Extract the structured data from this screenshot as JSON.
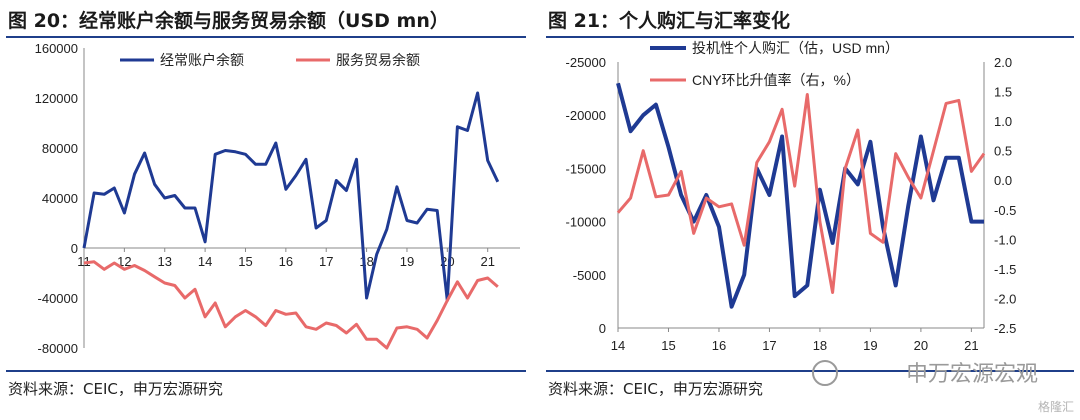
{
  "left": {
    "title": "图 20：经常账户余额与服务贸易余额（USD mn）",
    "source": "资料来源：CEIC，申万宏源研究",
    "chart_data": {
      "type": "line",
      "ylim": [
        -80000,
        160000
      ],
      "yticks": [
        -80000,
        -40000,
        0,
        40000,
        80000,
        120000,
        160000
      ],
      "ytick_labels": [
        "-80000",
        "-40000",
        "0",
        "40000",
        "80000",
        "120000",
        "160000"
      ],
      "xlim": [
        2011,
        2021.8
      ],
      "xticks": [
        2011,
        2012,
        2013,
        2014,
        2015,
        2016,
        2017,
        2018,
        2019,
        2020,
        2021
      ],
      "xtick_labels": [
        "11",
        "12",
        "13",
        "14",
        "15",
        "16",
        "17",
        "18",
        "19",
        "20",
        "21"
      ],
      "series": [
        {
          "name": "经常账户余额",
          "color": "#1f3a93",
          "width": 3,
          "x": [
            2011.0,
            2011.25,
            2011.5,
            2011.75,
            2012.0,
            2012.25,
            2012.5,
            2012.75,
            2013.0,
            2013.25,
            2013.5,
            2013.75,
            2014.0,
            2014.25,
            2014.5,
            2014.75,
            2015.0,
            2015.25,
            2015.5,
            2015.75,
            2016.0,
            2016.25,
            2016.5,
            2016.75,
            2017.0,
            2017.25,
            2017.5,
            2017.75,
            2018.0,
            2018.25,
            2018.5,
            2018.75,
            2019.0,
            2019.25,
            2019.5,
            2019.75,
            2020.0,
            2020.25,
            2020.5,
            2020.75,
            2021.0,
            2021.25
          ],
          "y": [
            0,
            44000,
            43000,
            48000,
            28000,
            59000,
            76000,
            51000,
            40000,
            42000,
            32000,
            32000,
            5000,
            75000,
            78000,
            77000,
            75000,
            67000,
            67000,
            84000,
            47000,
            58000,
            71000,
            16000,
            22000,
            54000,
            46000,
            71000,
            -40000,
            -5000,
            15000,
            49000,
            22000,
            20000,
            31000,
            30000,
            -42000,
            97000,
            94000,
            124000,
            70000,
            53000
          ]
        },
        {
          "name": "服务贸易余额",
          "color": "#e86a6a",
          "width": 3,
          "x": [
            2011.0,
            2011.25,
            2011.5,
            2011.75,
            2012.0,
            2012.25,
            2012.5,
            2012.75,
            2013.0,
            2013.25,
            2013.5,
            2013.75,
            2014.0,
            2014.25,
            2014.5,
            2014.75,
            2015.0,
            2015.25,
            2015.5,
            2015.75,
            2016.0,
            2016.25,
            2016.5,
            2016.75,
            2017.0,
            2017.25,
            2017.5,
            2017.75,
            2018.0,
            2018.25,
            2018.5,
            2018.75,
            2019.0,
            2019.25,
            2019.5,
            2019.75,
            2020.0,
            2020.25,
            2020.5,
            2020.75,
            2021.0,
            2021.25
          ],
          "y": [
            -12000,
            -11000,
            -17000,
            -12000,
            -17000,
            -14000,
            -18000,
            -23000,
            -28000,
            -30000,
            -40000,
            -33000,
            -55000,
            -44000,
            -63000,
            -55000,
            -50000,
            -55000,
            -62000,
            -50000,
            -53000,
            -52000,
            -63000,
            -65000,
            -60000,
            -62000,
            -68000,
            -61000,
            -73000,
            -73000,
            -80000,
            -64000,
            -63000,
            -65000,
            -72000,
            -58000,
            -42000,
            -27000,
            -40000,
            -26000,
            -24000,
            -31000
          ]
        }
      ]
    }
  },
  "right": {
    "title": "图 21：个人购汇与汇率变化",
    "source": "资料来源：CEIC，申万宏源研究",
    "chart_data": {
      "type": "line",
      "ylim_left": [
        0,
        -25000
      ],
      "yticks_left": [
        0,
        -5000,
        -10000,
        -15000,
        -20000,
        -25000
      ],
      "ytick_labels_left": [
        "0",
        "-5000",
        "-10000",
        "-15000",
        "-20000",
        "-25000"
      ],
      "ylim_right": [
        -2.5,
        2.0
      ],
      "yticks_right": [
        -2.5,
        -2.0,
        -1.5,
        -1.0,
        -0.5,
        0.0,
        0.5,
        1.0,
        1.5,
        2.0
      ],
      "ytick_labels_right": [
        "-2.5",
        "-2.0",
        "-1.5",
        "-1.0",
        "-0.5",
        "0.0",
        "0.5",
        "1.0",
        "1.5",
        "2.0"
      ],
      "xlim": [
        2014,
        2021.25
      ],
      "xticks": [
        2014,
        2015,
        2016,
        2017,
        2018,
        2019,
        2020,
        2021
      ],
      "xtick_labels": [
        "14",
        "15",
        "16",
        "17",
        "18",
        "19",
        "20",
        "21"
      ],
      "series": [
        {
          "name": "投机性个人购汇（估，USD mn）",
          "axis": "left",
          "color": "#1f3a93",
          "width": 4,
          "x": [
            2014.0,
            2014.25,
            2014.5,
            2014.75,
            2015.0,
            2015.25,
            2015.5,
            2015.75,
            2016.0,
            2016.25,
            2016.5,
            2016.75,
            2017.0,
            2017.25,
            2017.5,
            2017.75,
            2018.0,
            2018.25,
            2018.5,
            2018.75,
            2019.0,
            2019.25,
            2019.5,
            2019.75,
            2020.0,
            2020.25,
            2020.5,
            2020.75,
            2021.0,
            2021.25
          ],
          "y": [
            -23000,
            -18500,
            -20000,
            -21000,
            -17000,
            -12500,
            -10000,
            -12500,
            -9500,
            -2000,
            -5000,
            -15000,
            -12500,
            -18000,
            -3000,
            -4000,
            -13000,
            -8000,
            -15000,
            -13500,
            -17500,
            -9500,
            -4000,
            -11500,
            -18000,
            -12000,
            -16000,
            -16000,
            -10000,
            -10000
          ]
        },
        {
          "name": "CNY环比升值率（右，%）",
          "axis": "right",
          "color": "#e86a6a",
          "width": 3,
          "x": [
            2014.0,
            2014.25,
            2014.5,
            2014.75,
            2015.0,
            2015.25,
            2015.5,
            2015.75,
            2016.0,
            2016.25,
            2016.5,
            2016.75,
            2017.0,
            2017.25,
            2017.5,
            2017.75,
            2018.0,
            2018.25,
            2018.5,
            2018.75,
            2019.0,
            2019.25,
            2019.5,
            2019.75,
            2020.0,
            2020.25,
            2020.5,
            2020.75,
            2021.0,
            2021.25
          ],
          "y": [
            -0.55,
            -0.3,
            0.5,
            -0.28,
            -0.25,
            0.15,
            -0.9,
            -0.3,
            -0.45,
            -0.4,
            -1.1,
            0.3,
            0.65,
            1.2,
            -0.1,
            1.45,
            -0.7,
            -1.9,
            0.2,
            0.85,
            -0.9,
            -1.05,
            0.45,
            0.05,
            -0.3,
            0.5,
            1.3,
            1.35,
            0.15,
            0.45
          ]
        }
      ]
    }
  },
  "watermark": {
    "text": "申万宏源宏观",
    "corner": "格隆汇"
  }
}
